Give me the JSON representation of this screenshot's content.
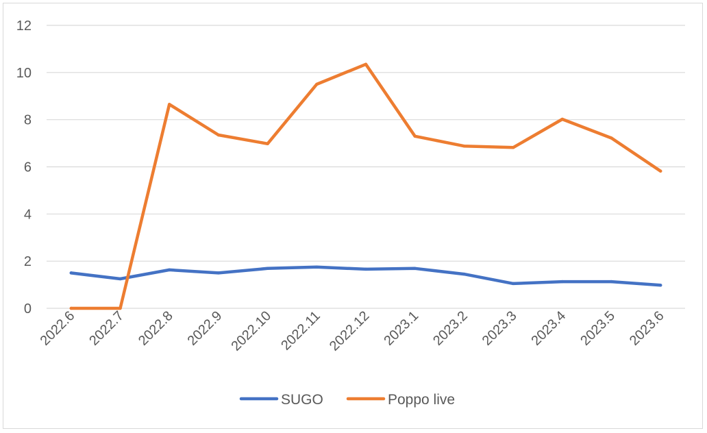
{
  "chart_data": {
    "type": "line",
    "title": "",
    "xlabel": "",
    "ylabel": "",
    "categories": [
      "2022.6",
      "2022.7",
      "2022.8",
      "2022.9",
      "2022.10",
      "2022.11",
      "2022.12",
      "2023.1",
      "2023.2",
      "2023.3",
      "2023.4",
      "2023.5",
      "2023.6"
    ],
    "ylim": [
      0,
      12
    ],
    "yticks": [
      0,
      2,
      4,
      6,
      8,
      10,
      12
    ],
    "grid": true,
    "legend_position": "bottom",
    "series": [
      {
        "name": "SUGO",
        "color": "#4472c4",
        "values": [
          1.5,
          1.25,
          1.63,
          1.5,
          1.69,
          1.75,
          1.66,
          1.69,
          1.45,
          1.05,
          1.13,
          1.13,
          0.98
        ]
      },
      {
        "name": "Poppo live",
        "color": "#ed7d31",
        "values": [
          0,
          0,
          8.65,
          7.35,
          6.98,
          9.5,
          10.35,
          7.3,
          6.88,
          6.82,
          8.02,
          7.22,
          5.82
        ]
      }
    ]
  }
}
